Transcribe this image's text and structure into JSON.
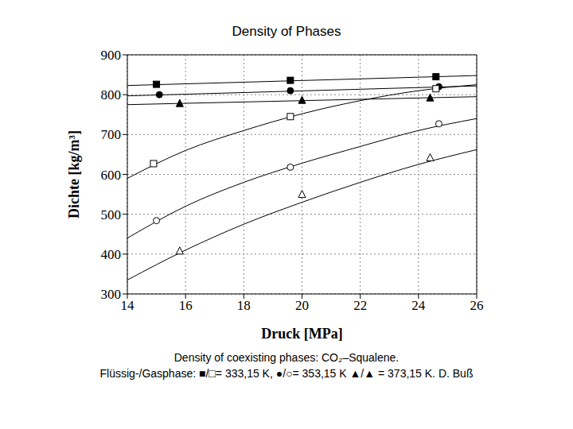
{
  "chart_data": {
    "type": "scatter",
    "title": "Density of Phases",
    "x_label": "Druck [MPa]",
    "y_label": "Dichte [kg/m³]",
    "caption": [
      "Density of coexisting phases: CO₂–Squalene.",
      "Flüssig-/Gasphase: ■/□= 333,15 K, ●/○= 353,15 K ▲/▲ = 373,15 K. D. Buß"
    ],
    "xlim": [
      14,
      26
    ],
    "ylim": [
      300,
      900
    ],
    "xticks": [
      14,
      16,
      18,
      20,
      22,
      24,
      26
    ],
    "yticks": [
      300,
      400,
      500,
      600,
      700,
      800,
      900
    ],
    "grid": true,
    "series": [
      {
        "type": "scatter",
        "marker": "square",
        "color": "#000000",
        "x": [
          15,
          19.6,
          24.6
        ],
        "values": [
          826,
          836,
          845
        ]
      },
      {
        "type": "scatter",
        "marker": "circle",
        "color": "#000000",
        "x": [
          15.1,
          19.6,
          24.7
        ],
        "values": [
          800,
          810,
          820
        ]
      },
      {
        "type": "scatter",
        "marker": "triangle",
        "color": "#000000",
        "x": [
          15.8,
          20,
          24.4
        ],
        "values": [
          778,
          786,
          792
        ]
      },
      {
        "type": "scatter",
        "marker": "open_square",
        "color": "#000000",
        "x": [
          14.9,
          19.6,
          24.6
        ],
        "values": [
          627,
          745,
          815
        ]
      },
      {
        "type": "scatter",
        "marker": "open_circle",
        "color": "#000000",
        "x": [
          15,
          19.6,
          24.7
        ],
        "values": [
          484,
          618,
          727
        ]
      },
      {
        "type": "scatter",
        "marker": "open_triangle",
        "color": "#000000",
        "x": [
          15.8,
          20,
          24.4
        ],
        "values": [
          408,
          550,
          642
        ]
      },
      {
        "type": "line",
        "marker": "none",
        "line_style": "solid",
        "color": "#000000",
        "x": [
          14,
          26
        ],
        "values": [
          823,
          848
        ]
      },
      {
        "type": "line",
        "marker": "none",
        "line_style": "solid",
        "color": "#000000",
        "x": [
          14,
          26
        ],
        "values": [
          797,
          822
        ]
      },
      {
        "type": "line",
        "marker": "none",
        "line_style": "solid",
        "color": "#000000",
        "x": [
          14,
          26
        ],
        "values": [
          775,
          795
        ]
      },
      {
        "type": "line",
        "marker": "none",
        "line_style": "solid",
        "color": "#000000",
        "x": [
          14,
          16,
          18,
          20,
          22,
          24,
          26
        ],
        "values": [
          590,
          660,
          710,
          752,
          785,
          810,
          825
        ]
      },
      {
        "type": "line",
        "marker": "none",
        "line_style": "solid",
        "color": "#000000",
        "x": [
          14,
          16,
          18,
          20,
          22,
          24,
          26
        ],
        "values": [
          440,
          520,
          580,
          628,
          670,
          710,
          740
        ]
      },
      {
        "type": "line",
        "marker": "none",
        "line_style": "solid",
        "color": "#000000",
        "x": [
          14,
          16,
          18,
          20,
          22,
          24,
          26
        ],
        "values": [
          335,
          410,
          475,
          530,
          580,
          625,
          662
        ]
      }
    ]
  }
}
